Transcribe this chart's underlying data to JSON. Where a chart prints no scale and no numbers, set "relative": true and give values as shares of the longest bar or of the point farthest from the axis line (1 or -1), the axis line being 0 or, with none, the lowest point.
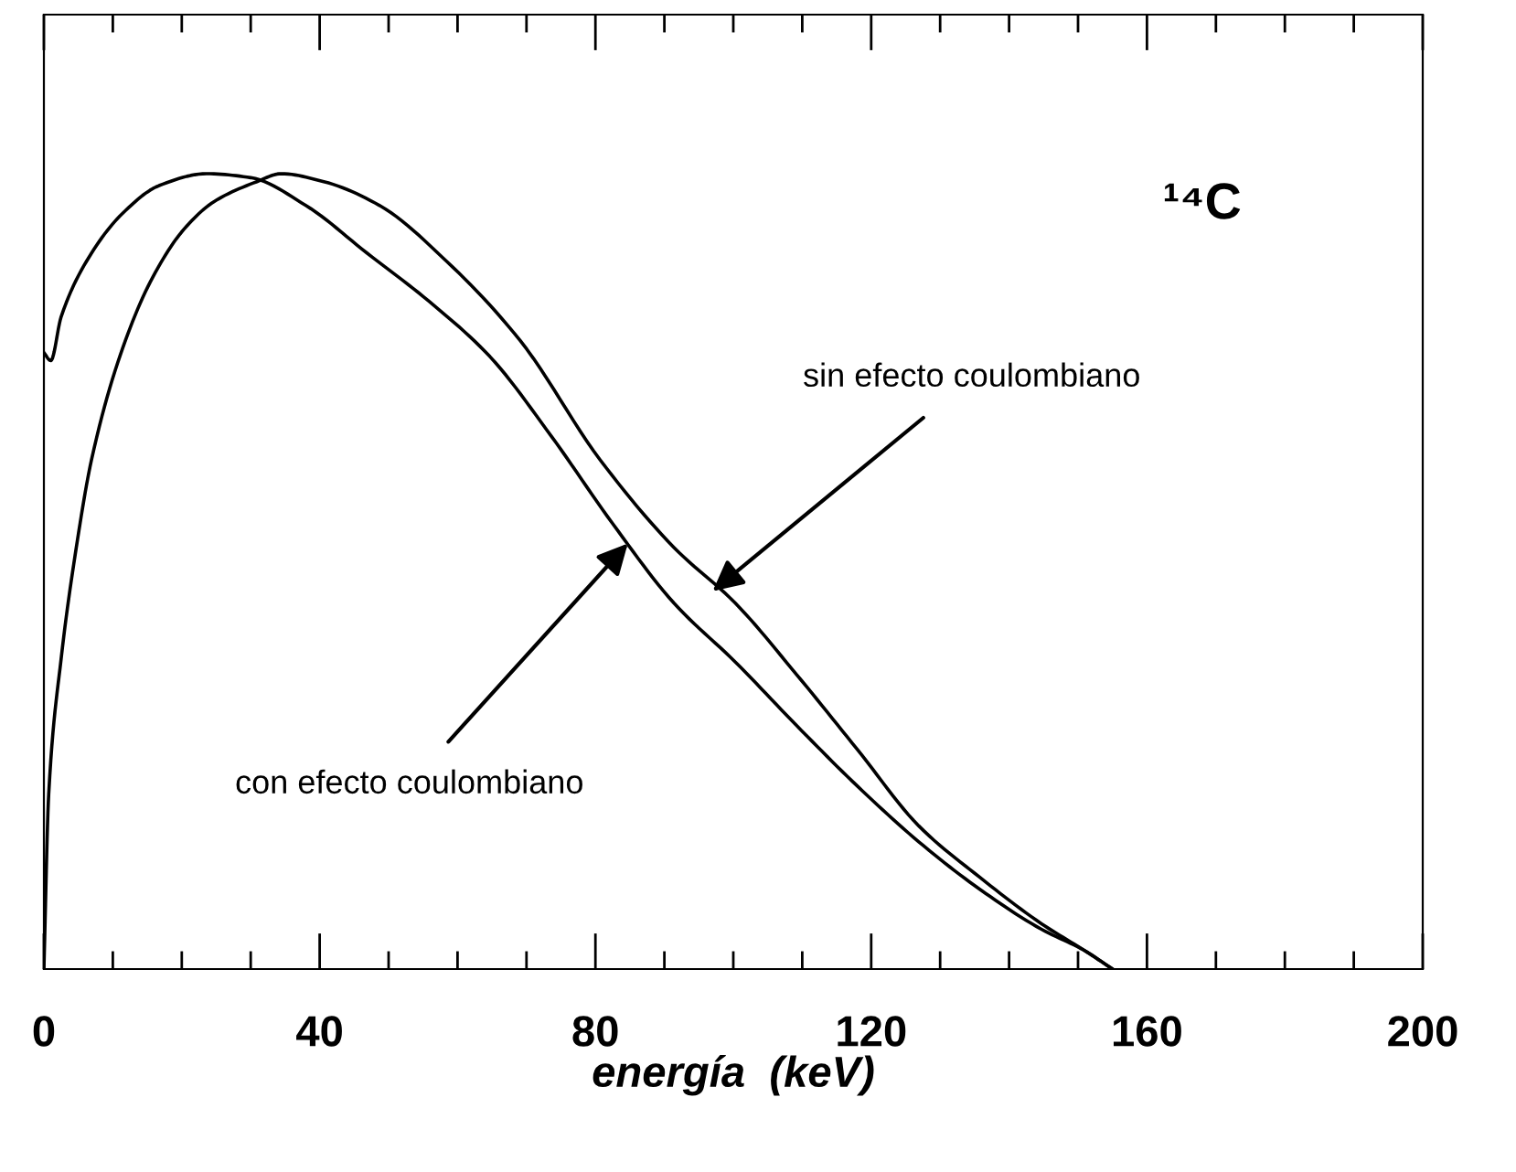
{
  "chart_data": {
    "type": "line",
    "relative": true,
    "xlabel": "energía  (keV)",
    "xlim": [
      0,
      200
    ],
    "xticks": [
      0,
      {
        "value": 10,
        "label": null
      },
      {
        "value": 20,
        "label": null
      },
      {
        "value": 30,
        "label": null
      },
      40,
      {
        "value": 50,
        "label": null
      },
      {
        "value": 60,
        "label": null
      },
      {
        "value": 70,
        "label": null
      },
      80,
      {
        "value": 90,
        "label": null
      },
      {
        "value": 100,
        "label": null
      },
      {
        "value": 110,
        "label": null
      },
      120,
      {
        "value": 130,
        "label": null
      },
      {
        "value": 140,
        "label": null
      },
      {
        "value": 150,
        "label": null
      },
      160,
      {
        "value": 170,
        "label": null
      },
      {
        "value": 180,
        "label": null
      },
      {
        "value": 190,
        "label": null
      },
      200
    ],
    "series": [
      {
        "color": "#000000",
        "x": [
          0,
          0.7,
          2.5,
          4.7,
          6.9,
          11.4,
          15.8,
          20.3,
          24.7,
          30.9,
          34.4,
          40.6,
          48.7,
          58.4,
          69.1,
          80.7,
          91.4,
          100.3,
          109.2,
          118,
          126.9,
          135.8,
          144.7,
          151,
          155
        ],
        "values": [
          0,
          0.22,
          0.39,
          0.53,
          0.64,
          0.78,
          0.87,
          0.93,
          0.965,
          0.99,
          1.0,
          0.99,
          0.96,
          0.89,
          0.79,
          0.64,
          0.53,
          0.46,
          0.37,
          0.276,
          0.18,
          0.115,
          0.057,
          0.023,
          0
        ]
      },
      {
        "color": "#000000",
        "x": [
          0,
          1,
          2.5,
          6.9,
          11.4,
          16.7,
          23.6,
          30,
          38,
          46.9,
          55.8,
          64.7,
          73.6,
          82.5,
          91.4,
          100.3,
          109.2,
          118,
          126.9,
          135.8,
          144.7,
          151,
          155
        ],
        "values": [
          0.775,
          0.765,
          0.82,
          0.9,
          0.95,
          0.985,
          1.0,
          0.995,
          0.96,
          0.9,
          0.84,
          0.77,
          0.67,
          0.56,
          0.46,
          0.386,
          0.306,
          0.23,
          0.16,
          0.1,
          0.05,
          0.023,
          0
        ]
      }
    ],
    "annotations": [
      "¹⁴C",
      {
        "text": "sin efecto coulombiano",
        "x": 97,
        "y": 0.475
      },
      {
        "text": "con efecto coulombiano",
        "x": 84.7,
        "y": 0.535
      }
    ]
  }
}
